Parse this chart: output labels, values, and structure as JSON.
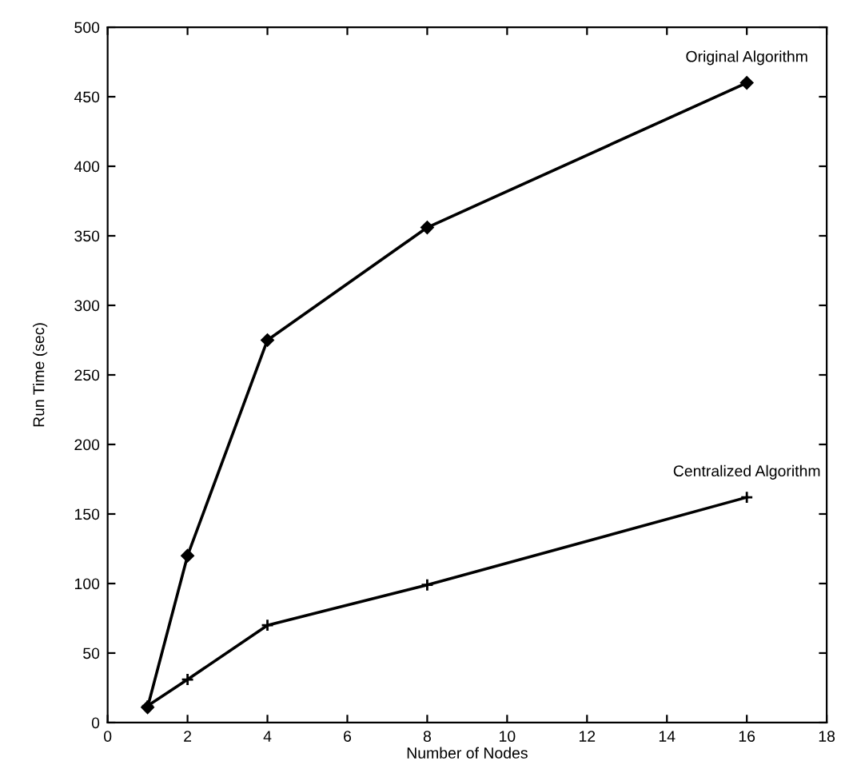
{
  "chart_data": {
    "type": "line",
    "xlabel": "Number of Nodes",
    "ylabel": "Run Time (sec)",
    "xlim": [
      0,
      18
    ],
    "xticks": [
      0,
      2,
      4,
      6,
      8,
      10,
      12,
      14,
      16,
      18
    ],
    "ylim": [
      0,
      500
    ],
    "yticks": [
      0,
      50,
      100,
      150,
      200,
      250,
      300,
      350,
      400,
      450,
      500
    ],
    "grid": false,
    "line_style": "solid",
    "series": [
      {
        "name": "Original Algorithm",
        "color": "#000000",
        "marker": "diamond",
        "x": [
          1,
          2,
          4,
          8,
          16
        ],
        "values": [
          11,
          120,
          275,
          356,
          460
        ]
      },
      {
        "name": "Centralized Algorithm",
        "color": "#000000",
        "marker": "cross",
        "x": [
          1,
          2,
          4,
          8,
          16
        ],
        "values": [
          12,
          31,
          70,
          99,
          162
        ]
      }
    ]
  }
}
